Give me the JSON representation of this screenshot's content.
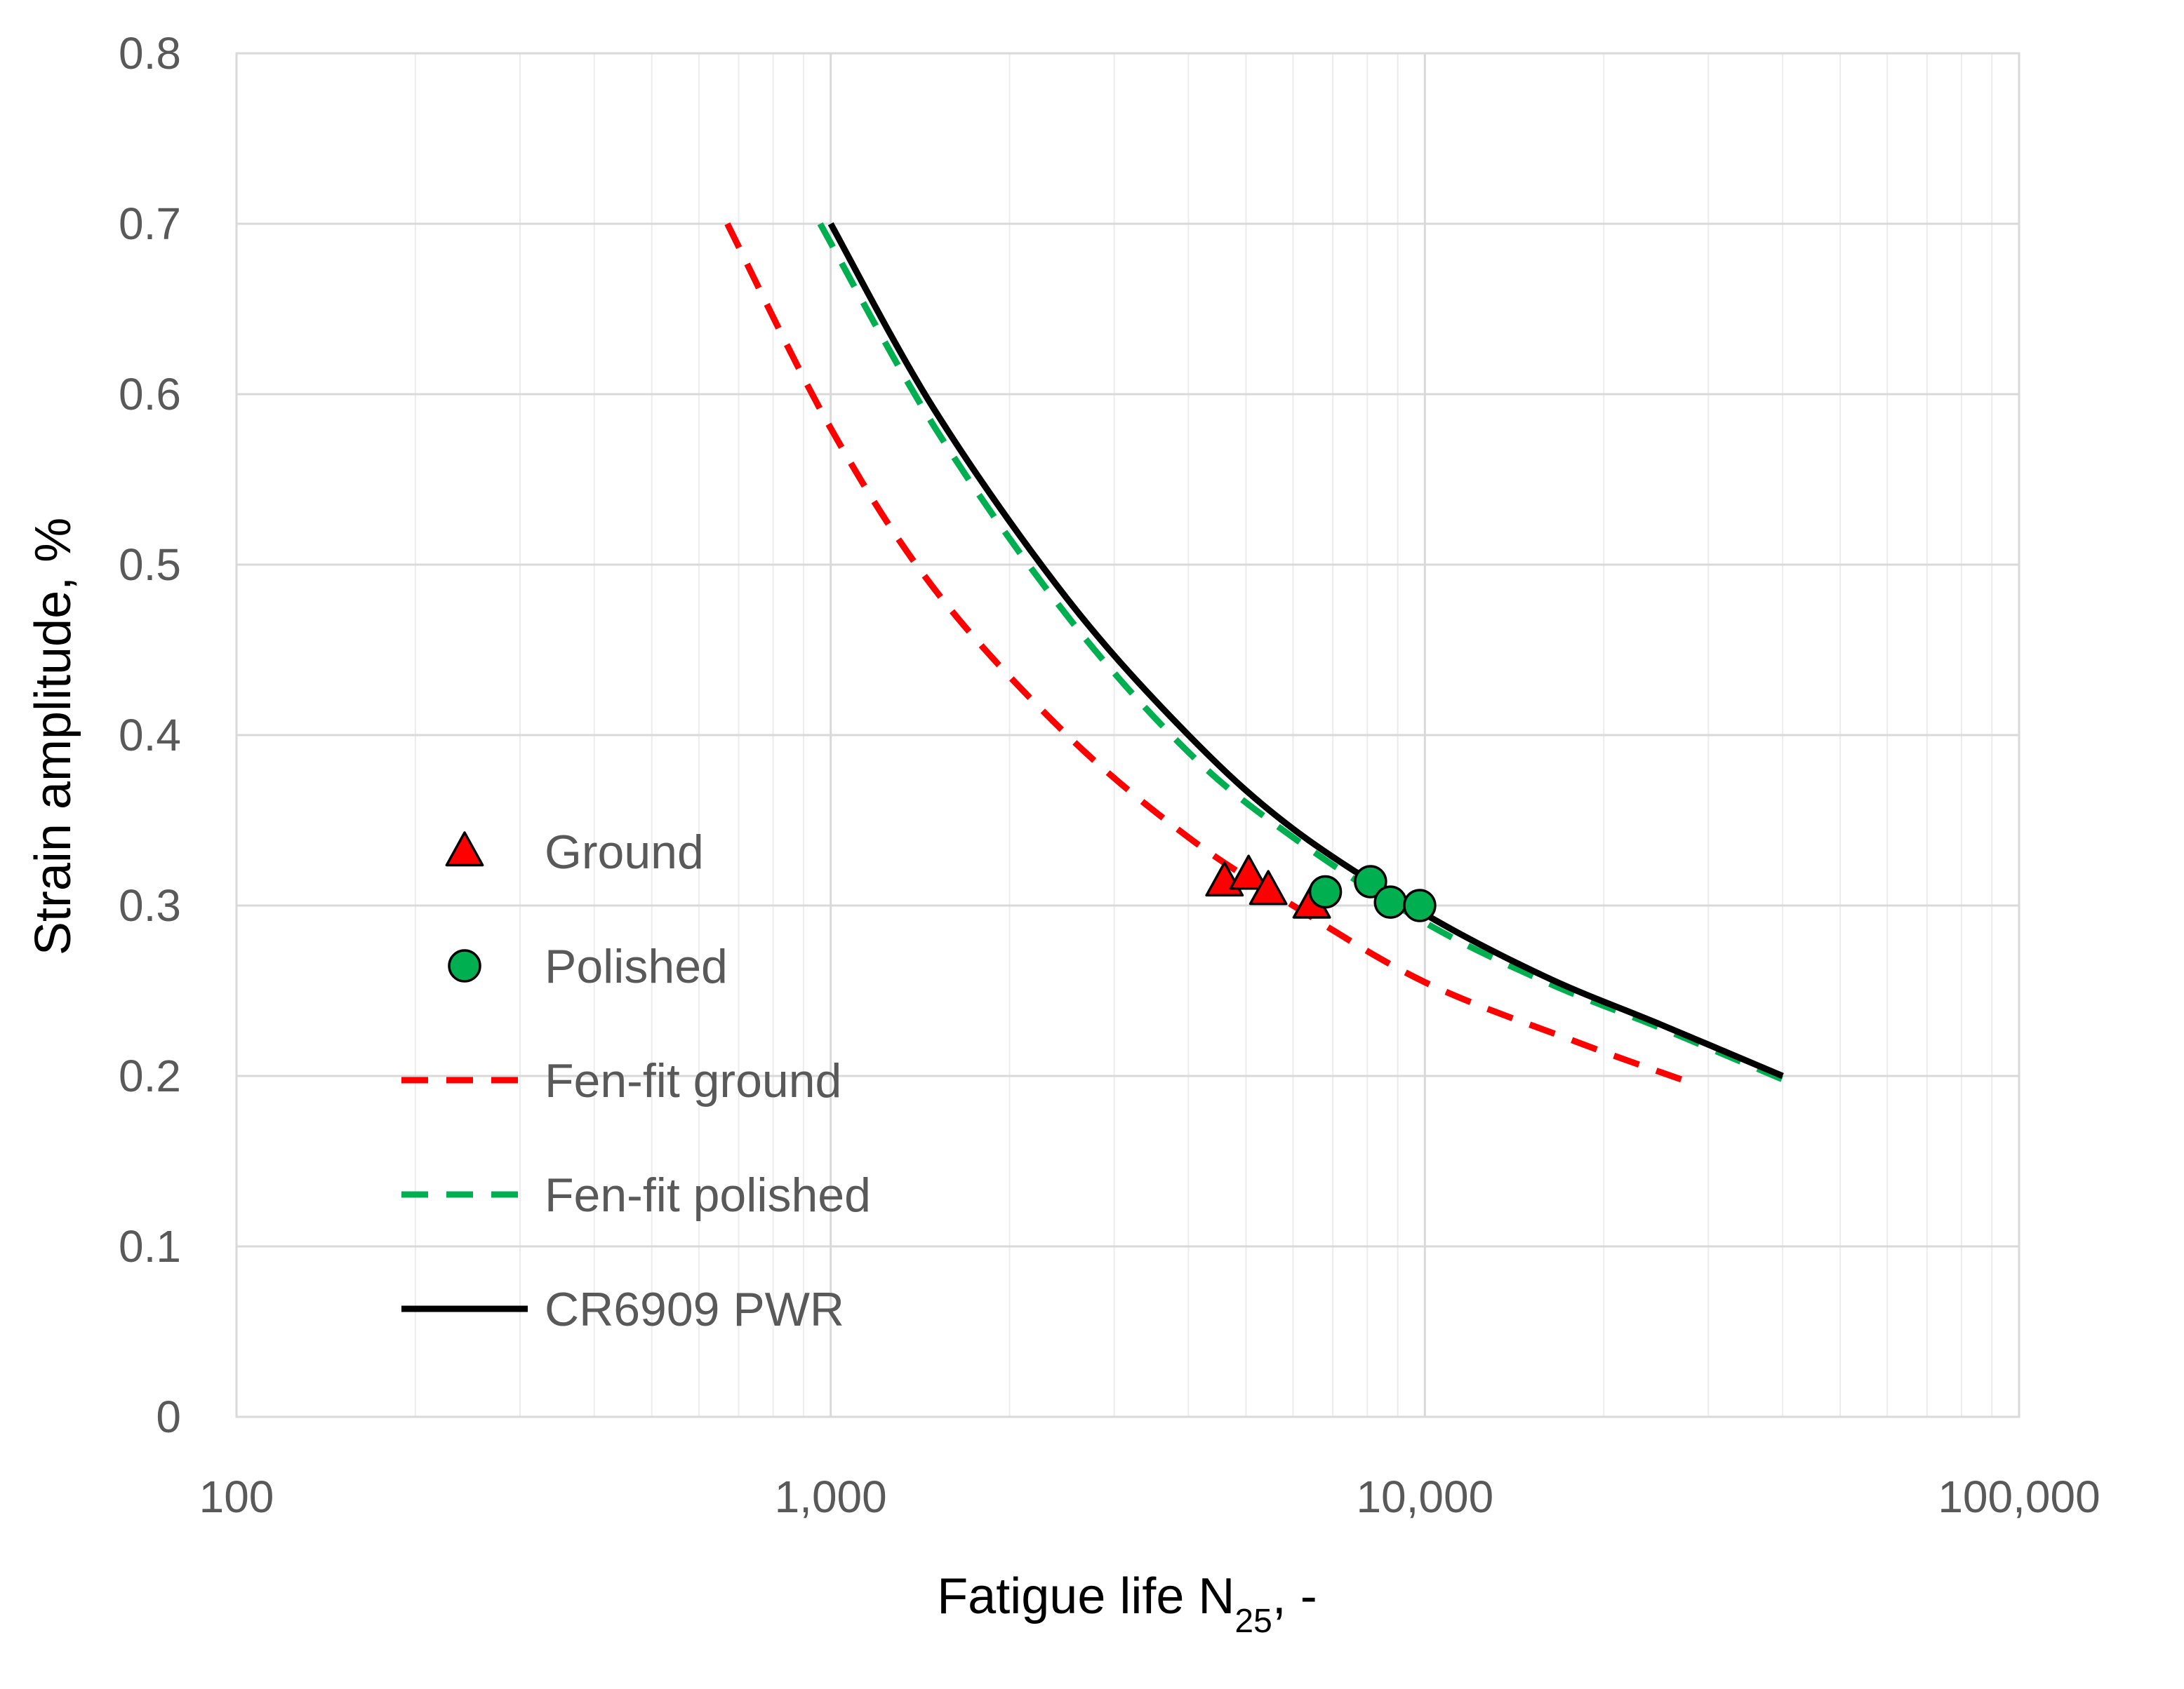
{
  "chart_data": {
    "type": "scatter",
    "title": "",
    "xlabel": "Fatigue life N",
    "xlabel_subscript": "25",
    "xlabel_suffix": ", -",
    "ylabel": "Strain amplitude, %",
    "x_scale": "log",
    "xlim": [
      100,
      100000
    ],
    "ylim": [
      0,
      0.8
    ],
    "x_ticks": [
      {
        "value": 100,
        "label": "100"
      },
      {
        "value": 1000,
        "label": "1,000"
      },
      {
        "value": 10000,
        "label": "10,000"
      },
      {
        "value": 100000,
        "label": "100,000"
      }
    ],
    "y_ticks": [
      {
        "value": 0,
        "label": "0"
      },
      {
        "value": 0.1,
        "label": "0.1"
      },
      {
        "value": 0.2,
        "label": "0.2"
      },
      {
        "value": 0.3,
        "label": "0.3"
      },
      {
        "value": 0.4,
        "label": "0.4"
      },
      {
        "value": 0.5,
        "label": "0.5"
      },
      {
        "value": 0.6,
        "label": "0.6"
      },
      {
        "value": 0.7,
        "label": "0.7"
      },
      {
        "value": 0.8,
        "label": "0.8"
      }
    ],
    "grid": true,
    "legend_position": "left-center",
    "series": [
      {
        "name": "Ground",
        "kind": "markers",
        "marker": "triangle",
        "color": "#ff0000",
        "points": [
          {
            "x": 4600,
            "y": 0.314
          },
          {
            "x": 5050,
            "y": 0.318
          },
          {
            "x": 5450,
            "y": 0.309
          },
          {
            "x": 6450,
            "y": 0.301
          }
        ]
      },
      {
        "name": "Polished",
        "kind": "markers",
        "marker": "circle",
        "color": "#00b050",
        "points": [
          {
            "x": 6800,
            "y": 0.308
          },
          {
            "x": 8100,
            "y": 0.314
          },
          {
            "x": 8750,
            "y": 0.302
          },
          {
            "x": 9800,
            "y": 0.3
          }
        ]
      },
      {
        "name": "Fen-fit ground",
        "kind": "line",
        "dash": "dashed",
        "color": "#ff0000",
        "points": [
          {
            "x": 670,
            "y": 0.7
          },
          {
            "x": 1000,
            "y": 0.58
          },
          {
            "x": 1500,
            "y": 0.485
          },
          {
            "x": 2500,
            "y": 0.4
          },
          {
            "x": 4000,
            "y": 0.34
          },
          {
            "x": 6000,
            "y": 0.3
          },
          {
            "x": 10000,
            "y": 0.255
          },
          {
            "x": 18000,
            "y": 0.22
          },
          {
            "x": 27000,
            "y": 0.198
          }
        ]
      },
      {
        "name": "Fen-fit polished",
        "kind": "line",
        "dash": "dashed",
        "color": "#00b050",
        "points": [
          {
            "x": 960,
            "y": 0.7
          },
          {
            "x": 1500,
            "y": 0.58
          },
          {
            "x": 2500,
            "y": 0.47
          },
          {
            "x": 4000,
            "y": 0.39
          },
          {
            "x": 6000,
            "y": 0.34
          },
          {
            "x": 10000,
            "y": 0.29
          },
          {
            "x": 16000,
            "y": 0.255
          },
          {
            "x": 25000,
            "y": 0.228
          },
          {
            "x": 40000,
            "y": 0.198
          }
        ]
      },
      {
        "name": "CR6909 PWR",
        "kind": "line",
        "dash": "solid",
        "color": "#000000",
        "points": [
          {
            "x": 1000,
            "y": 0.7
          },
          {
            "x": 1500,
            "y": 0.59
          },
          {
            "x": 2500,
            "y": 0.48
          },
          {
            "x": 4000,
            "y": 0.4
          },
          {
            "x": 6000,
            "y": 0.345
          },
          {
            "x": 10000,
            "y": 0.295
          },
          {
            "x": 16000,
            "y": 0.258
          },
          {
            "x": 25000,
            "y": 0.23
          },
          {
            "x": 40000,
            "y": 0.2
          }
        ]
      }
    ]
  }
}
